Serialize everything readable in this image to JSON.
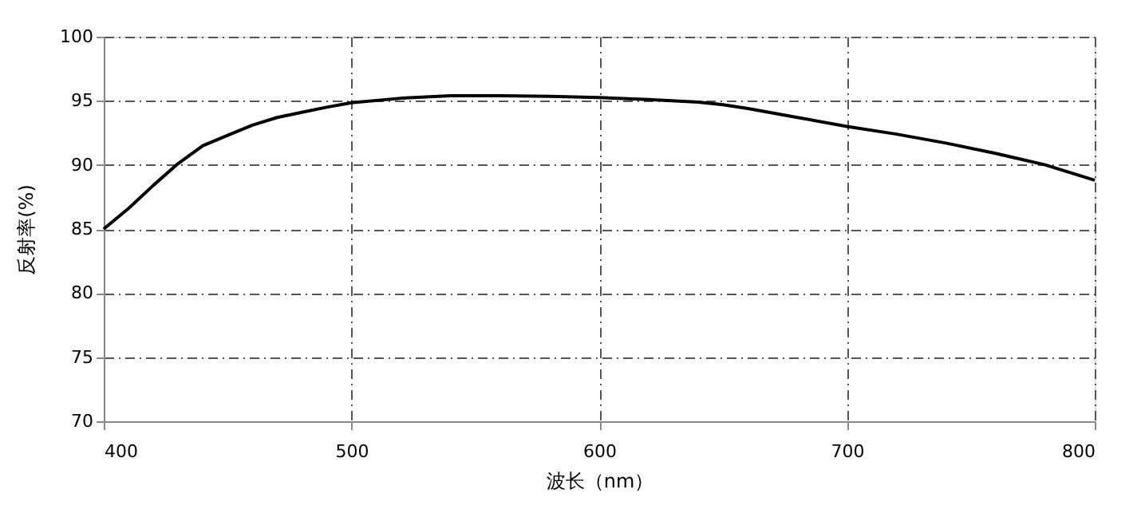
{
  "chart_data": {
    "type": "line",
    "xlabel": "波长（nm）",
    "ylabel": "反射率(%)",
    "x": [
      400,
      410,
      420,
      430,
      440,
      450,
      460,
      470,
      480,
      490,
      500,
      520,
      540,
      560,
      580,
      600,
      620,
      640,
      650,
      660,
      680,
      700,
      720,
      740,
      760,
      780,
      800
    ],
    "series": [
      {
        "color": "#000000",
        "values": [
          85.0,
          86.6,
          88.4,
          90.1,
          91.5,
          92.3,
          93.1,
          93.7,
          94.1,
          94.5,
          94.85,
          95.2,
          95.4,
          95.4,
          95.35,
          95.25,
          95.1,
          94.9,
          94.7,
          94.4,
          93.7,
          93.0,
          92.4,
          91.7,
          90.9,
          90.0,
          88.8
        ]
      }
    ],
    "xlim": [
      400,
      800
    ],
    "xticks": [
      400,
      500,
      600,
      700,
      800
    ],
    "ylim": [
      70,
      100
    ],
    "yticks": [
      70,
      75,
      80,
      85,
      90,
      95,
      100
    ],
    "grid": true,
    "line_style": "solid",
    "marker": "none",
    "legend": false
  }
}
